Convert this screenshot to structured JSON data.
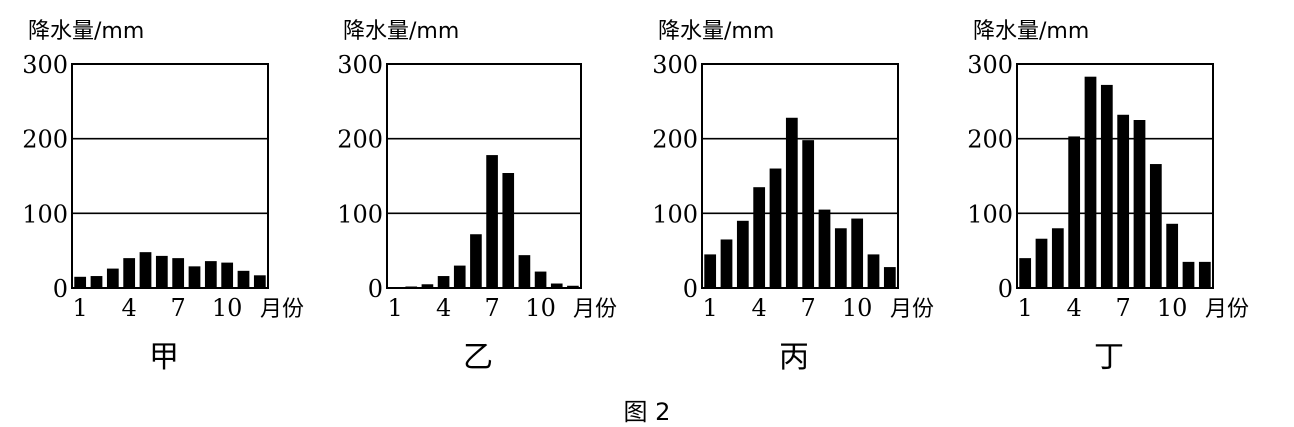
{
  "figure": {
    "caption": "图 2"
  },
  "chart_data": [
    {
      "type": "bar",
      "title": "甲",
      "ylabel": "降水量/mm",
      "xlabel": "月份",
      "ylim": [
        0,
        300
      ],
      "yticks": [
        0,
        100,
        200,
        300
      ],
      "xtick_labels": [
        "1",
        "4",
        "7",
        "10"
      ],
      "grid": "horizontal",
      "categories": [
        1,
        2,
        3,
        4,
        5,
        6,
        7,
        8,
        9,
        10,
        11,
        12
      ],
      "values": [
        15,
        16,
        26,
        40,
        48,
        43,
        40,
        29,
        36,
        34,
        23,
        17
      ]
    },
    {
      "type": "bar",
      "title": "乙",
      "ylabel": "降水量/mm",
      "xlabel": "月份",
      "ylim": [
        0,
        300
      ],
      "yticks": [
        0,
        100,
        200,
        300
      ],
      "xtick_labels": [
        "1",
        "4",
        "7",
        "10"
      ],
      "grid": "horizontal",
      "categories": [
        1,
        2,
        3,
        4,
        5,
        6,
        7,
        8,
        9,
        10,
        11,
        12
      ],
      "values": [
        0,
        2,
        5,
        16,
        30,
        72,
        178,
        154,
        44,
        22,
        6,
        3
      ]
    },
    {
      "type": "bar",
      "title": "丙",
      "ylabel": "降水量/mm",
      "xlabel": "月份",
      "ylim": [
        0,
        300
      ],
      "yticks": [
        0,
        100,
        200,
        300
      ],
      "xtick_labels": [
        "1",
        "4",
        "7",
        "10"
      ],
      "grid": "horizontal",
      "categories": [
        1,
        2,
        3,
        4,
        5,
        6,
        7,
        8,
        9,
        10,
        11,
        12
      ],
      "values": [
        45,
        65,
        90,
        135,
        160,
        228,
        198,
        105,
        80,
        93,
        45,
        28
      ]
    },
    {
      "type": "bar",
      "title": "丁",
      "ylabel": "降水量/mm",
      "xlabel": "月份",
      "ylim": [
        0,
        300
      ],
      "yticks": [
        0,
        100,
        200,
        300
      ],
      "xtick_labels": [
        "1",
        "4",
        "7",
        "10"
      ],
      "grid": "horizontal",
      "categories": [
        1,
        2,
        3,
        4,
        5,
        6,
        7,
        8,
        9,
        10,
        11,
        12
      ],
      "values": [
        40,
        66,
        80,
        203,
        283,
        272,
        232,
        225,
        166,
        86,
        35,
        35
      ]
    }
  ]
}
